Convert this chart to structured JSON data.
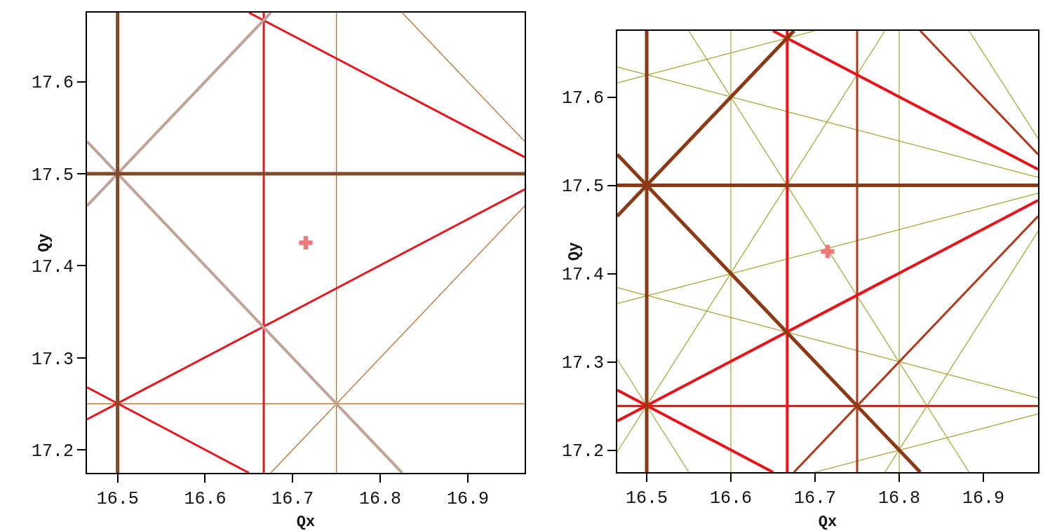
{
  "chart_data": [
    {
      "type": "line",
      "xlabel": "Qx",
      "ylabel": "Qy",
      "xlim": [
        16.465,
        16.965
      ],
      "ylim": [
        17.175,
        17.675
      ],
      "xticks": [
        16.5,
        16.6,
        16.7,
        16.8,
        16.9
      ],
      "yticks": [
        17.2,
        17.3,
        17.4,
        17.5,
        17.6
      ],
      "grid": false,
      "series": [
        {
          "color": "#b5651d",
          "x": [
            16.75,
            16.75
          ],
          "values": [
            17.175,
            17.675
          ]
        },
        {
          "color": "#b5651d",
          "x": [
            16.465,
            16.965
          ],
          "values": [
            17.25,
            17.25
          ]
        },
        {
          "color": "#b5651d",
          "x": [
            16.675,
            16.965
          ],
          "values": [
            17.175,
            17.465
          ]
        },
        {
          "color": "#b5651d",
          "x": [
            16.825,
            16.965
          ],
          "values": [
            17.675,
            17.535
          ]
        },
        {
          "color": "#e8141c",
          "x": [
            16.667,
            16.667
          ],
          "values": [
            17.175,
            17.675
          ]
        },
        {
          "color": "#e8141c",
          "x": [
            16.65,
            16.965
          ],
          "values": [
            17.675,
            17.518
          ]
        },
        {
          "color": "#e8141c",
          "x": [
            16.465,
            16.965
          ],
          "values": [
            17.233,
            17.483
          ]
        },
        {
          "color": "#e8141c",
          "x": [
            16.465,
            16.65
          ],
          "values": [
            17.268,
            17.175
          ]
        },
        {
          "color": "#bfa298",
          "x": [
            16.465,
            16.675
          ],
          "values": [
            17.465,
            17.675
          ]
        },
        {
          "color": "#bfa298",
          "x": [
            16.465,
            16.825
          ],
          "values": [
            17.535,
            17.175
          ]
        },
        {
          "color": "#7d4a2c",
          "x": [
            16.5,
            16.5
          ],
          "values": [
            17.175,
            17.675
          ]
        },
        {
          "color": "#7d4a2c",
          "x": [
            16.465,
            16.965
          ],
          "values": [
            17.5,
            17.5
          ]
        },
        {
          "type": "scatter",
          "marker": "cross",
          "color": "#f07878",
          "x": [
            16.715
          ],
          "values": [
            17.425
          ]
        }
      ]
    },
    {
      "type": "line",
      "xlabel": "Qx",
      "ylabel": "Qy",
      "xlim": [
        16.465,
        16.965
      ],
      "ylim": [
        17.175,
        17.675
      ],
      "xticks": [
        16.5,
        16.6,
        16.7,
        16.8,
        16.9
      ],
      "yticks": [
        17.2,
        17.3,
        17.4,
        17.5,
        17.6
      ],
      "grid": false,
      "series": [
        {
          "color": "#a3a32a",
          "x": [
            16.6,
            16.6
          ],
          "values": [
            17.175,
            17.675
          ]
        },
        {
          "color": "#a3a32a",
          "x": [
            16.8,
            16.8
          ],
          "values": [
            17.175,
            17.675
          ]
        },
        {
          "color": "#a3a32a",
          "x": [
            16.465,
            16.7
          ],
          "values": [
            17.616,
            17.675
          ]
        },
        {
          "color": "#a3a32a",
          "x": [
            16.465,
            16.965
          ],
          "values": [
            17.634,
            17.509
          ]
        },
        {
          "color": "#a3a32a",
          "x": [
            16.465,
            16.965
          ],
          "values": [
            17.366,
            17.491
          ]
        },
        {
          "color": "#a3a32a",
          "x": [
            16.465,
            16.965
          ],
          "values": [
            17.384,
            17.259
          ]
        },
        {
          "color": "#a3a32a",
          "x": [
            16.7,
            16.965
          ],
          "values": [
            17.175,
            17.241
          ]
        },
        {
          "color": "#a3a32a",
          "x": [
            16.55,
            16.883
          ],
          "values": [
            17.675,
            17.175
          ]
        },
        {
          "color": "#a3a32a",
          "x": [
            16.465,
            16.783
          ],
          "values": [
            17.198,
            17.675
          ]
        },
        {
          "color": "#a3a32a",
          "x": [
            16.465,
            16.55
          ],
          "values": [
            17.303,
            17.175
          ]
        },
        {
          "color": "#a3a32a",
          "x": [
            16.783,
            16.965
          ],
          "values": [
            17.175,
            17.448
          ]
        },
        {
          "color": "#a3a32a",
          "x": [
            16.883,
            16.965
          ],
          "values": [
            17.675,
            17.553
          ]
        },
        {
          "color": "#b0381a",
          "x": [
            16.75,
            16.75
          ],
          "values": [
            17.175,
            17.675
          ]
        },
        {
          "color": "#b0381a",
          "x": [
            16.465,
            16.965
          ],
          "values": [
            17.25,
            17.25
          ]
        },
        {
          "color": "#b0381a",
          "x": [
            16.675,
            16.965
          ],
          "values": [
            17.175,
            17.465
          ]
        },
        {
          "color": "#b0381a",
          "x": [
            16.825,
            16.965
          ],
          "values": [
            17.675,
            17.535
          ]
        },
        {
          "color": "#e8141c",
          "x": [
            16.667,
            16.667
          ],
          "values": [
            17.175,
            17.675
          ]
        },
        {
          "color": "#e8141c",
          "x": [
            16.65,
            16.965
          ],
          "values": [
            17.675,
            17.518
          ]
        },
        {
          "color": "#e8141c",
          "x": [
            16.465,
            16.965
          ],
          "values": [
            17.233,
            17.483
          ]
        },
        {
          "color": "#e8141c",
          "x": [
            16.465,
            16.65
          ],
          "values": [
            17.268,
            17.175
          ]
        },
        {
          "color": "#8b3a16",
          "x": [
            16.465,
            16.675
          ],
          "values": [
            17.465,
            17.675
          ]
        },
        {
          "color": "#8b3a16",
          "x": [
            16.465,
            16.825
          ],
          "values": [
            17.535,
            17.175
          ]
        },
        {
          "color": "#8b3a16",
          "x": [
            16.5,
            16.5
          ],
          "values": [
            17.175,
            17.675
          ]
        },
        {
          "color": "#8b3a16",
          "x": [
            16.465,
            16.965
          ],
          "values": [
            17.5,
            17.5
          ]
        },
        {
          "type": "scatter",
          "marker": "cross",
          "color": "#f07878",
          "x": [
            16.715
          ],
          "values": [
            17.425
          ]
        }
      ]
    }
  ]
}
